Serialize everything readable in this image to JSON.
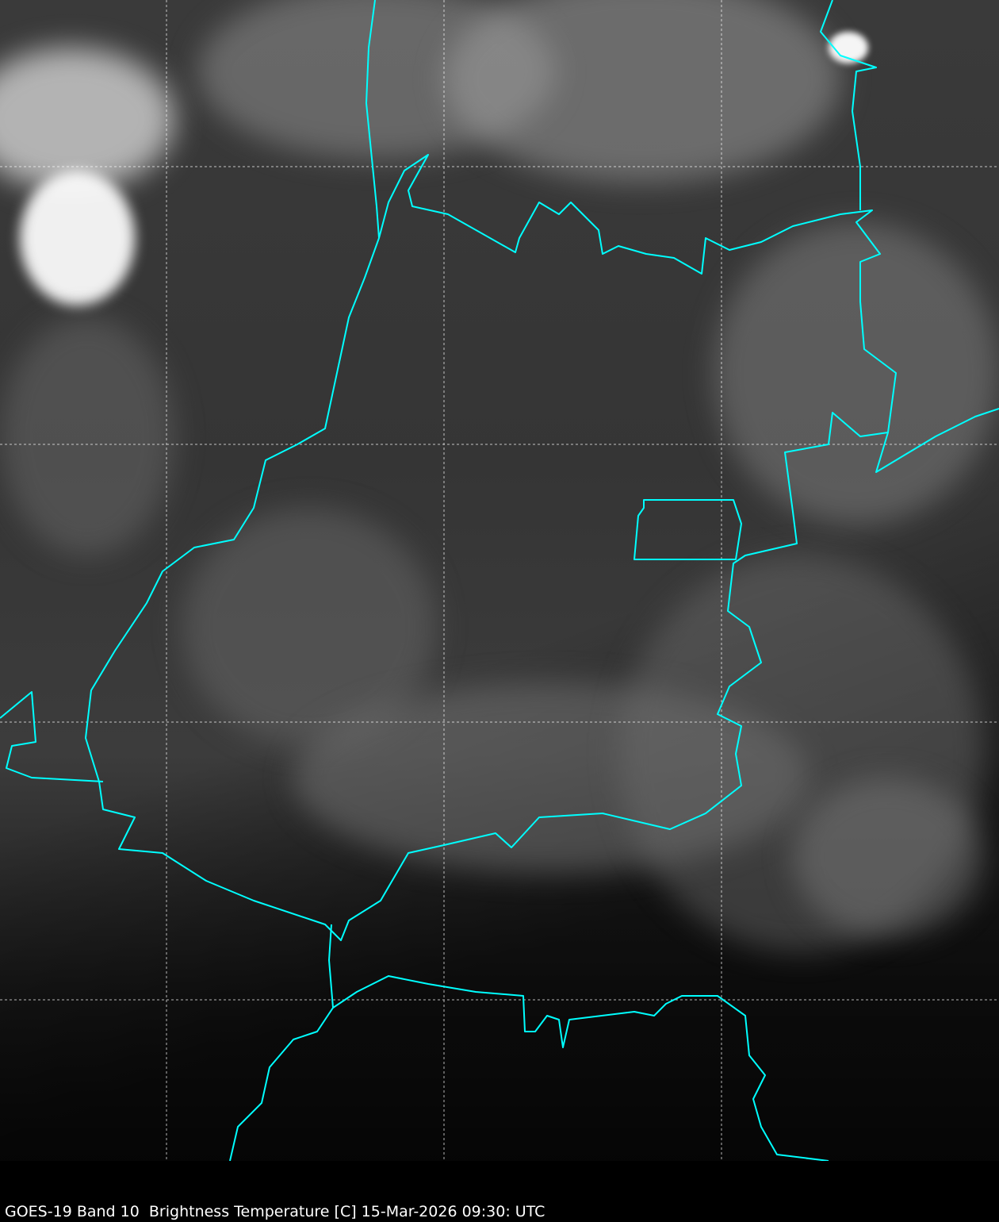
{
  "caption": "GOES-19 Band 10  Brightness Temperature [C] 15-Mar-2026 09:30: UTC",
  "colors": {
    "border": "#00ffff",
    "gridline": "#ffffff",
    "background": "#000000"
  },
  "map": {
    "imagery": "infrared brightness temperature grayscale",
    "gridlines": true,
    "boundaries": "state and country borders"
  }
}
